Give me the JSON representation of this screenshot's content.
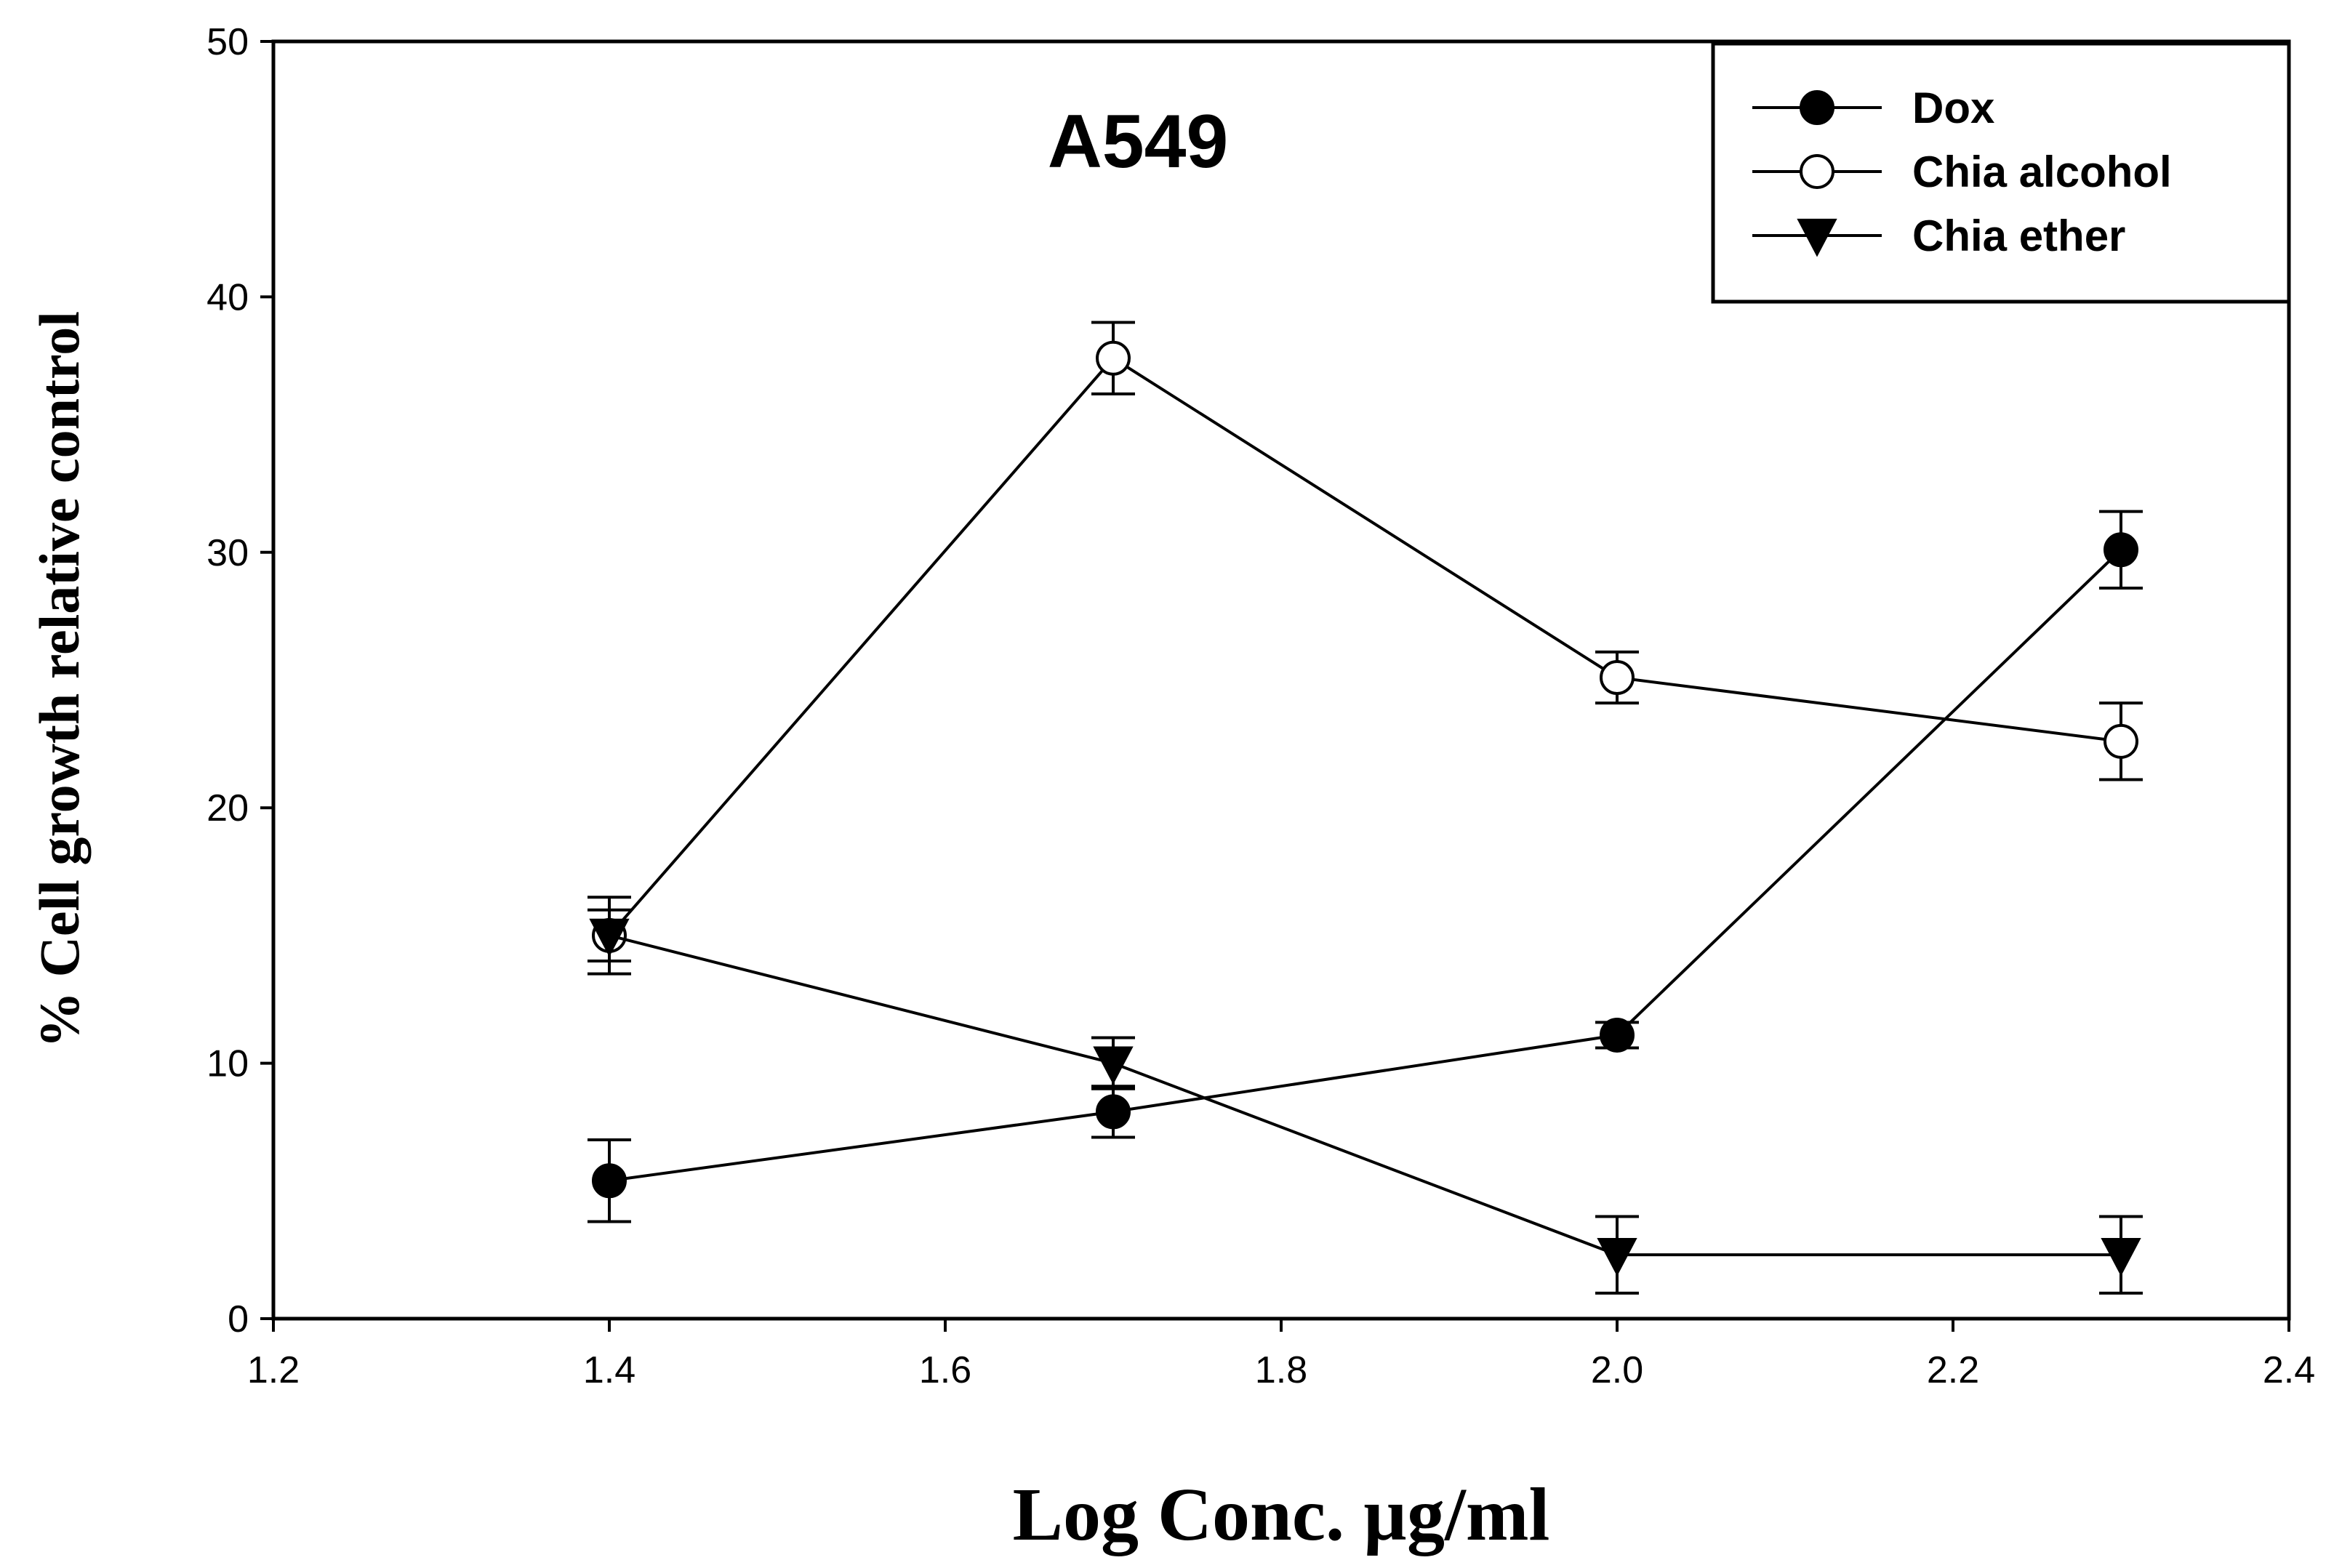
{
  "chart_data": {
    "type": "line",
    "title": "A549",
    "xlabel": "Log Conc. µg/ml",
    "ylabel": "% Cell growth relative control",
    "xlim": [
      1.2,
      2.4
    ],
    "ylim": [
      0,
      50
    ],
    "x_ticks": [
      "1.2",
      "1.4",
      "1.6",
      "1.8",
      "2.0",
      "2.2",
      "2.4"
    ],
    "y_ticks": [
      "0",
      "10",
      "20",
      "30",
      "40",
      "50"
    ],
    "grid": false,
    "legend_position": "top-right",
    "series": [
      {
        "name": "Dox",
        "marker": "filled-circle",
        "x": [
          1.4,
          1.7,
          2.0,
          2.3
        ],
        "y": [
          5.4,
          8.1,
          11.1,
          30.1
        ],
        "error": [
          1.6,
          1.0,
          0.5,
          1.5
        ]
      },
      {
        "name": "Chia alcohol",
        "marker": "open-circle",
        "x": [
          1.4,
          1.7,
          2.0,
          2.3
        ],
        "y": [
          15.0,
          37.6,
          25.1,
          22.6
        ],
        "error": [
          1.5,
          1.4,
          1.0,
          1.5
        ]
      },
      {
        "name": "Chia ether",
        "marker": "filled-triangle-down",
        "x": [
          1.4,
          1.7,
          2.0,
          2.3
        ],
        "y": [
          15.0,
          10.0,
          2.5,
          2.5
        ],
        "error": [
          1.0,
          1.0,
          1.5,
          1.5
        ]
      }
    ]
  }
}
